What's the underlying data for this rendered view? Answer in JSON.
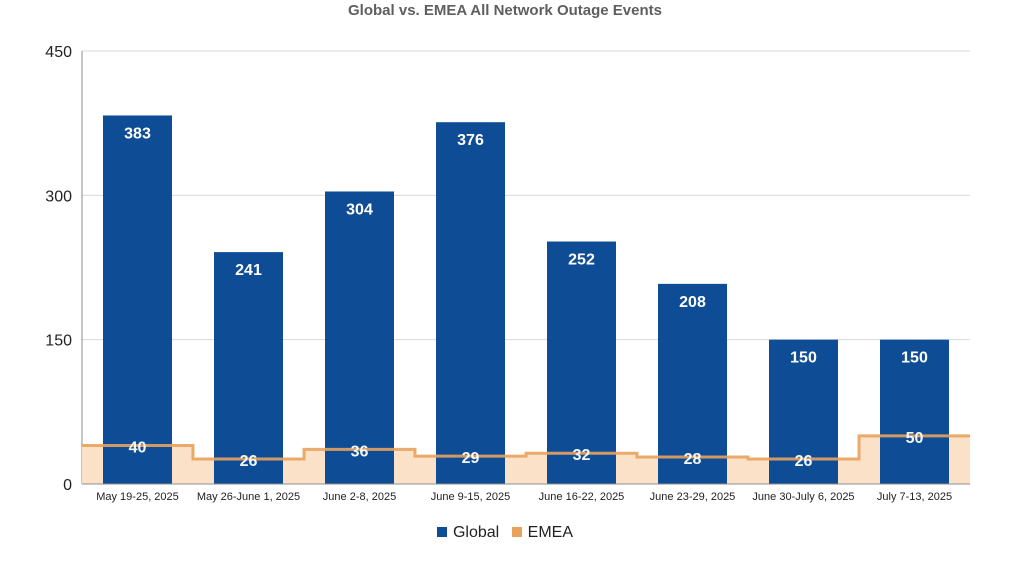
{
  "chart_data": {
    "type": "bar",
    "title": "Global vs. EMEA All Network Outage Events",
    "categories": [
      "May 19-25, 2025",
      "May 26-June 1, 2025",
      "June 2-8, 2025",
      "June 9-15, 2025",
      "June 16-22, 2025",
      "June 23-29, 2025",
      "June 30-July 6, 2025",
      "July 7-13, 2025"
    ],
    "series": [
      {
        "name": "Global",
        "type": "bar",
        "color": "#0f4c96",
        "values": [
          383,
          241,
          304,
          376,
          252,
          208,
          150,
          150
        ]
      },
      {
        "name": "EMEA",
        "type": "stepped-area",
        "color": "#e8a25c",
        "fill": "#fbe1c8",
        "values": [
          40,
          26,
          36,
          29,
          32,
          28,
          26,
          50
        ]
      }
    ],
    "yticks": [
      0,
      150,
      300,
      450
    ],
    "ylim": [
      0,
      450
    ],
    "grid": true,
    "legend": "bottom"
  },
  "legend": [
    {
      "label": "Global",
      "color": "#0f4c96"
    },
    {
      "label": "EMEA",
      "color": "#e8a25c"
    }
  ]
}
